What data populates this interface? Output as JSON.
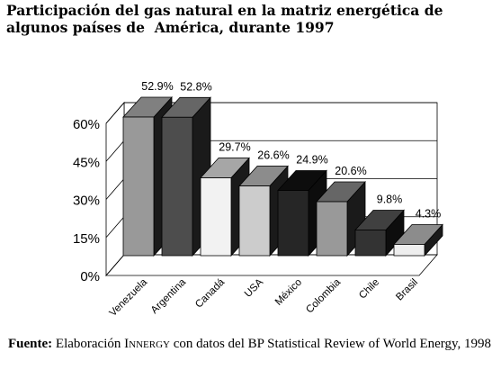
{
  "header": {
    "title_line1": "Participación del gas natural en la matriz energética de",
    "title_line2": "algunos países de  América, durante 1997"
  },
  "chart_data": {
    "type": "bar",
    "categories": [
      "Venezuela",
      "Argentina",
      "Canadá",
      "USA",
      "México",
      "Colombia",
      "Chile",
      "Brasil"
    ],
    "values": [
      52.9,
      52.8,
      29.7,
      26.6,
      24.9,
      20.6,
      9.8,
      4.3
    ],
    "data_labels": [
      "52.9%",
      "52.8%",
      "29.7%",
      "26.6%",
      "24.9%",
      "20.6%",
      "9.8%",
      "4.3%"
    ],
    "ylim": [
      0,
      60
    ],
    "yticks": [
      0,
      15,
      30,
      45,
      60
    ],
    "ytick_labels": [
      "0%",
      "15%",
      "30%",
      "45%",
      "60%"
    ],
    "grid": true,
    "style": "3d-bar",
    "bar_colors": [
      "#999999",
      "#4d4d4d",
      "#f2f2f2",
      "#cccccc",
      "#262626",
      "#999999",
      "#333333",
      "#eeeeee"
    ],
    "bar_side_colors": [
      "#1a1a1a",
      "#1a1a1a",
      "#1a1a1a",
      "#1a1a1a",
      "#0d0d0d",
      "#1a1a1a",
      "#0d0d0d",
      "#1a1a1a"
    ],
    "bar_top_colors": [
      "#808080",
      "#666666",
      "#a6a6a6",
      "#8c8c8c",
      "#0d0d0d",
      "#666666",
      "#404040",
      "#8c8c8c"
    ]
  },
  "footer": {
    "source_label": "Fuente:",
    "source_pre": " Elaboración I",
    "source_sc": "nnergy",
    "source_post": " con datos del BP Statistical Review of World Energy, 1998"
  }
}
